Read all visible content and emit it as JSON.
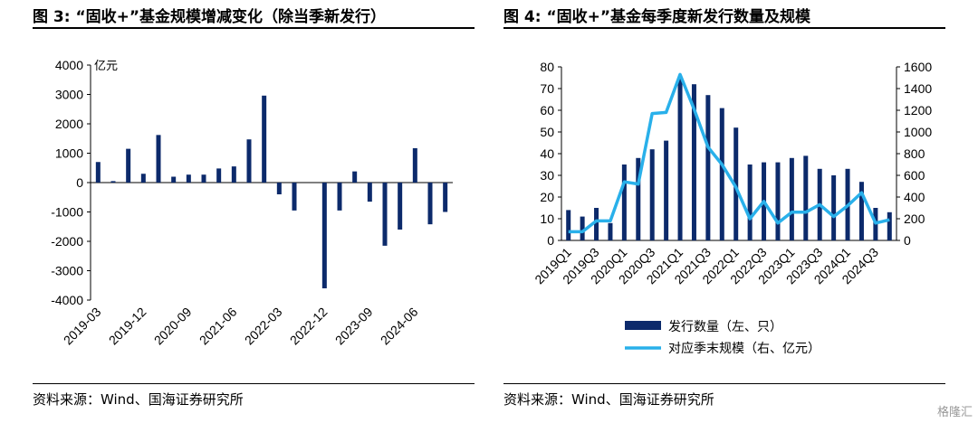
{
  "charts": {
    "left": {
      "title": "图 3:  “固收+”基金规模增减变化（除当季新发行）",
      "source": "资料来源：Wind、国海证券研究所"
    },
    "right": {
      "title": "图 4:  “固收+”基金每季度新发行数量及规模",
      "source": "资料来源：Wind、国海证券研究所"
    }
  },
  "watermark": "格隆汇",
  "chart_data": [
    {
      "type": "bar",
      "title": "“固收+”基金规模增减变化（除当季新发行）",
      "unit_label": "亿元",
      "ylim": [
        -4000,
        4000
      ],
      "yticks": [
        4000,
        3000,
        2000,
        1000,
        0,
        -1000,
        -2000,
        -3000,
        -4000
      ],
      "x_tick_labels": [
        "2019-03",
        "2019-12",
        "2020-09",
        "2021-06",
        "2022-03",
        "2022-12",
        "2023-09",
        "2024-06"
      ],
      "categories": [
        "2019-03",
        "2019-06",
        "2019-09",
        "2019-12",
        "2020-03",
        "2020-06",
        "2020-09",
        "2020-12",
        "2021-03",
        "2021-06",
        "2021-09",
        "2021-12",
        "2022-03",
        "2022-06",
        "2022-09",
        "2022-12",
        "2023-03",
        "2023-06",
        "2023-09",
        "2023-12",
        "2024-03",
        "2024-06",
        "2024-09",
        "2024-12"
      ],
      "values": [
        700,
        50,
        1150,
        300,
        1620,
        200,
        270,
        270,
        480,
        550,
        1470,
        2960,
        -400,
        -950,
        0,
        -3600,
        -950,
        380,
        -650,
        -2150,
        -1600,
        1170,
        -1420,
        -1000
      ],
      "bar_color": "#0c2a6b",
      "grid": false
    },
    {
      "type": "bar+line",
      "title": "“固收+”基金每季度新发行数量及规模",
      "categories": [
        "2019Q1",
        "2019Q2",
        "2019Q3",
        "2019Q4",
        "2020Q1",
        "2020Q2",
        "2020Q3",
        "2020Q4",
        "2021Q1",
        "2021Q2",
        "2021Q3",
        "2021Q4",
        "2022Q1",
        "2022Q2",
        "2022Q3",
        "2022Q4",
        "2023Q1",
        "2023Q2",
        "2023Q3",
        "2023Q4",
        "2024Q1",
        "2024Q2",
        "2024Q3",
        "2024Q4"
      ],
      "x_tick_labels": [
        "2019Q1",
        "2019Q3",
        "2020Q1",
        "2020Q3",
        "2021Q1",
        "2021Q3",
        "2022Q1",
        "2022Q3",
        "2023Q1",
        "2023Q3",
        "2024Q1",
        "2024Q3"
      ],
      "ylim_left": [
        0,
        80
      ],
      "yticks_left": [
        80,
        70,
        60,
        50,
        40,
        30,
        20,
        10,
        0
      ],
      "ylim_right": [
        0,
        1600
      ],
      "yticks_right": [
        1600,
        1400,
        1200,
        1000,
        800,
        600,
        400,
        200,
        0
      ],
      "series": [
        {
          "name": "发行数量（左、只）",
          "type": "bar",
          "axis": "left",
          "color": "#0c2a6b",
          "values": [
            14,
            11,
            15,
            8,
            35,
            38,
            42,
            46,
            75,
            72,
            67,
            61,
            52,
            35,
            36,
            36,
            38,
            39,
            33,
            30,
            33,
            27,
            15,
            13
          ]
        },
        {
          "name": "对应季末规模（右、亿元）",
          "type": "line",
          "axis": "right",
          "color": "#29b0ea",
          "values": [
            80,
            80,
            180,
            180,
            540,
            520,
            1170,
            1180,
            1530,
            1210,
            860,
            700,
            490,
            200,
            360,
            160,
            260,
            260,
            330,
            220,
            320,
            440,
            160,
            190
          ]
        }
      ],
      "legend_position": "bottom",
      "grid": false
    }
  ]
}
